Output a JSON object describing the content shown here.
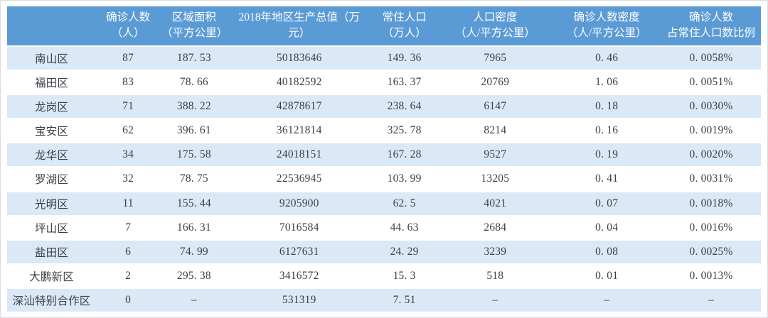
{
  "colors": {
    "header_bg": "#5b9bd5",
    "header_text": "#ffffff",
    "alt_row_bg": "#dbe9f6",
    "plain_row_bg": "#ffffff",
    "body_text": "#3c3f44",
    "frame_border": "#d8dde3"
  },
  "table": {
    "columns": [
      "",
      "确诊人数\n（人）",
      "区域面积\n（平方公里）",
      "2018年地区生产总值（万\n元）",
      "常住人口\n（万人）",
      "人口密度\n（人/平方公里）",
      "确诊人数密度\n（人/平方公里）",
      "确诊人数\n占常住人口数比例"
    ],
    "rows": [
      {
        "name": "南山区",
        "values": [
          "87",
          "187. 53",
          "50183646",
          "149. 36",
          "7965",
          "0. 46",
          "0. 0058%"
        ]
      },
      {
        "name": "福田区",
        "values": [
          "83",
          "78. 66",
          "40182592",
          "163. 37",
          "20769",
          "1. 06",
          "0. 0051%"
        ]
      },
      {
        "name": "龙岗区",
        "values": [
          "71",
          "388. 22",
          "42878617",
          "238. 64",
          "6147",
          "0. 18",
          "0. 0030%"
        ]
      },
      {
        "name": "宝安区",
        "values": [
          "62",
          "396. 61",
          "36121814",
          "325. 78",
          "8214",
          "0. 16",
          "0. 0019%"
        ]
      },
      {
        "name": "龙华区",
        "values": [
          "34",
          "175. 58",
          "24018151",
          "167. 28",
          "9527",
          "0. 19",
          "0. 0020%"
        ]
      },
      {
        "name": "罗湖区",
        "values": [
          "32",
          "78. 75",
          "22536945",
          "103. 99",
          "13205",
          "0. 41",
          "0. 0031%"
        ]
      },
      {
        "name": "光明区",
        "values": [
          "11",
          "155. 44",
          "9205900",
          "62. 5",
          "4021",
          "0. 07",
          "0. 0018%"
        ]
      },
      {
        "name": "坪山区",
        "values": [
          "7",
          "166. 31",
          "7016584",
          "44. 63",
          "2684",
          "0. 04",
          "0. 0016%"
        ]
      },
      {
        "name": "盐田区",
        "values": [
          "6",
          "74. 99",
          "6127631",
          "24. 29",
          "3239",
          "0. 08",
          "0. 0025%"
        ]
      },
      {
        "name": "大鹏新区",
        "values": [
          "2",
          "295. 38",
          "3416572",
          "15. 3",
          "518",
          "0. 01",
          "0. 0013%"
        ]
      },
      {
        "name": "深汕特别合作区",
        "values": [
          "0",
          "–",
          "531319",
          "7. 51",
          "–",
          "–",
          "–"
        ]
      }
    ]
  }
}
